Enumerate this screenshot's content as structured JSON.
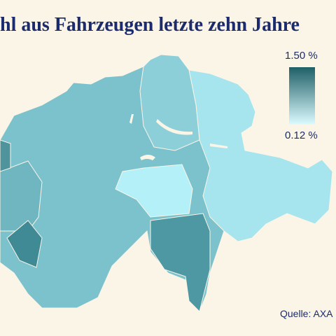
{
  "title": "hl aus Fahrzeugen letzte zehn Jahre",
  "legend": {
    "max": "1.50 %",
    "min": "0.12 %"
  },
  "source": "Quelle: AXA"
}
